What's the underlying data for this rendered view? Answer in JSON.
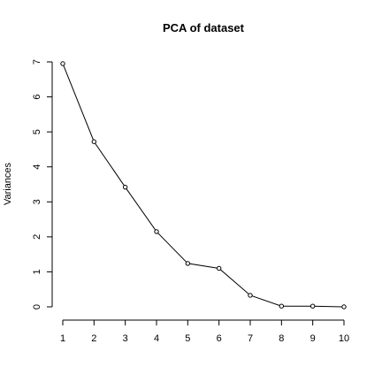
{
  "chart_data": {
    "type": "line",
    "title": "PCA of dataset",
    "xlabel": "",
    "ylabel": "Variances",
    "x": [
      1,
      2,
      3,
      4,
      5,
      6,
      7,
      8,
      9,
      10
    ],
    "values": [
      6.95,
      4.72,
      3.42,
      2.15,
      1.24,
      1.1,
      0.33,
      0.02,
      0.02,
      0.0
    ],
    "xlim": [
      1,
      10
    ],
    "ylim": [
      0,
      7
    ],
    "xticks": [
      "1",
      "2",
      "3",
      "4",
      "5",
      "6",
      "7",
      "8",
      "9",
      "10"
    ],
    "yticks": [
      "0",
      "1",
      "2",
      "3",
      "4",
      "5",
      "6",
      "7"
    ],
    "grid": false,
    "markers": "open-circle",
    "line_color": "#000000"
  }
}
